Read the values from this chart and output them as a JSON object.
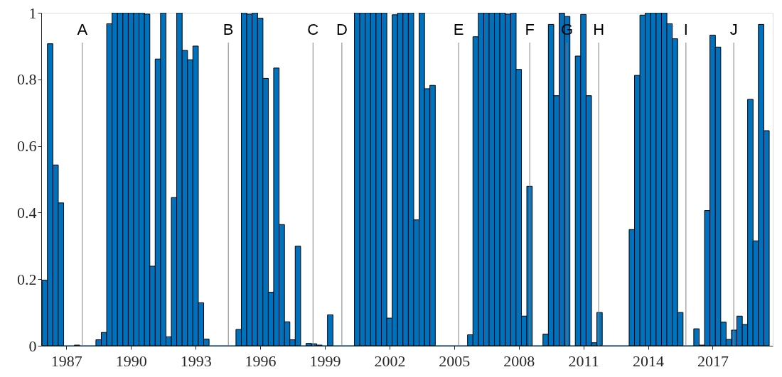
{
  "chart_data": {
    "type": "bar",
    "x": [
      1986,
      1986.25,
      1986.5,
      1986.75,
      1987,
      1987.25,
      1987.5,
      1987.75,
      1988,
      1988.25,
      1988.5,
      1988.75,
      1989,
      1989.25,
      1989.5,
      1989.75,
      1990,
      1990.25,
      1990.5,
      1990.75,
      1991,
      1991.25,
      1991.5,
      1991.75,
      1992,
      1992.25,
      1992.5,
      1992.75,
      1993,
      1993.25,
      1993.5,
      1993.75,
      1994,
      1994.25,
      1994.5,
      1994.75,
      1995,
      1995.25,
      1995.5,
      1995.75,
      1996,
      1996.25,
      1996.5,
      1996.75,
      1997,
      1997.25,
      1997.5,
      1997.75,
      1998,
      1998.25,
      1998.5,
      1998.75,
      1999,
      1999.25,
      1999.5,
      1999.75,
      2000,
      2000.25,
      2000.5,
      2000.75,
      2001,
      2001.25,
      2001.5,
      2001.75,
      2002,
      2002.25,
      2002.5,
      2002.75,
      2003,
      2003.25,
      2003.5,
      2003.75,
      2004,
      2004.25,
      2004.5,
      2004.75,
      2005,
      2005.25,
      2005.5,
      2005.75,
      2006,
      2006.25,
      2006.5,
      2006.75,
      2007,
      2007.25,
      2007.5,
      2007.75,
      2008,
      2008.25,
      2008.5,
      2008.75,
      2009,
      2009.25,
      2009.5,
      2009.75,
      2010,
      2010.25,
      2010.5,
      2010.75,
      2011,
      2011.25,
      2011.5,
      2011.75,
      2012,
      2012.25,
      2012.5,
      2012.75,
      2013,
      2013.25,
      2013.5,
      2013.75,
      2014,
      2014.25,
      2014.5,
      2014.75,
      2015,
      2015.25,
      2015.5,
      2015.75,
      2016,
      2016.25,
      2016.5,
      2016.75,
      2017,
      2017.25,
      2017.5,
      2017.75,
      2018,
      2018.25,
      2018.5,
      2018.75,
      2019,
      2019.25,
      2019.5
    ],
    "values": [
      0.197,
      0.907,
      0.543,
      0.429,
      0,
      0,
      0.002,
      0,
      0,
      0,
      0.018,
      0.04,
      0.967,
      1,
      1,
      1,
      1,
      1,
      1,
      0.996,
      0.239,
      0.861,
      1,
      0.027,
      0.445,
      1,
      0.887,
      0.859,
      0.9,
      0.129,
      0.02,
      0,
      0,
      0,
      0,
      0,
      0.049,
      1,
      0.996,
      1,
      0.984,
      0.803,
      0.161,
      0.834,
      0.364,
      0.072,
      0.018,
      0.299,
      0,
      0.007,
      0.006,
      0.002,
      0,
      0.093,
      0,
      0,
      0,
      0,
      1,
      1,
      1,
      1,
      1,
      1,
      0.083,
      0.994,
      1,
      1,
      1,
      0.378,
      1,
      0.772,
      0.782,
      0,
      0,
      0,
      0,
      0,
      0,
      0.033,
      0.928,
      1,
      1,
      1,
      1,
      1,
      0.996,
      1,
      0.83,
      0.089,
      0.479,
      0,
      0,
      0.035,
      0.965,
      0.751,
      0.999,
      0.989,
      0,
      0.87,
      0.995,
      0.751,
      0.009,
      0.1,
      0,
      0,
      0,
      0,
      0,
      0.349,
      0.812,
      0.993,
      1,
      1,
      1,
      1,
      0.967,
      0.922,
      0.1,
      0,
      0,
      0.051,
      0.002,
      0.406,
      0.933,
      0.897,
      0.071,
      0.019,
      0.047,
      0.089,
      0.064,
      0.74,
      0.315,
      0.965,
      0.646
    ],
    "color": "#0072bd",
    "xlim": [
      1986,
      2019.625
    ],
    "ylim": [
      0,
      1
    ],
    "xticks": [
      1987,
      1990,
      1993,
      1996,
      1999,
      2002,
      2005,
      2008,
      2011,
      2014,
      2017
    ],
    "yticks": [
      0,
      0.2,
      0.4,
      0.6,
      0.8,
      1
    ],
    "grid": false,
    "ref_lines": [
      {
        "axis": "x",
        "value": 1987.74,
        "label": "A",
        "color": "#808080"
      },
      {
        "axis": "x",
        "value": 1994.52,
        "label": "B",
        "color": "#808080"
      },
      {
        "axis": "x",
        "value": 1998.45,
        "label": "C",
        "color": "#808080"
      },
      {
        "axis": "x",
        "value": 1999.79,
        "label": "D",
        "color": "#808080"
      },
      {
        "axis": "x",
        "value": 2005.21,
        "label": "E",
        "color": "#808080"
      },
      {
        "axis": "x",
        "value": 2008.51,
        "label": "F",
        "color": "#808080"
      },
      {
        "axis": "x",
        "value": 2010.24,
        "label": "G",
        "color": "#808080"
      },
      {
        "axis": "x",
        "value": 2011.71,
        "label": "H",
        "color": "#808080"
      },
      {
        "axis": "x",
        "value": 2015.76,
        "label": "I",
        "color": "#808080"
      },
      {
        "axis": "x",
        "value": 2017.98,
        "label": "J",
        "color": "#808080"
      }
    ]
  }
}
